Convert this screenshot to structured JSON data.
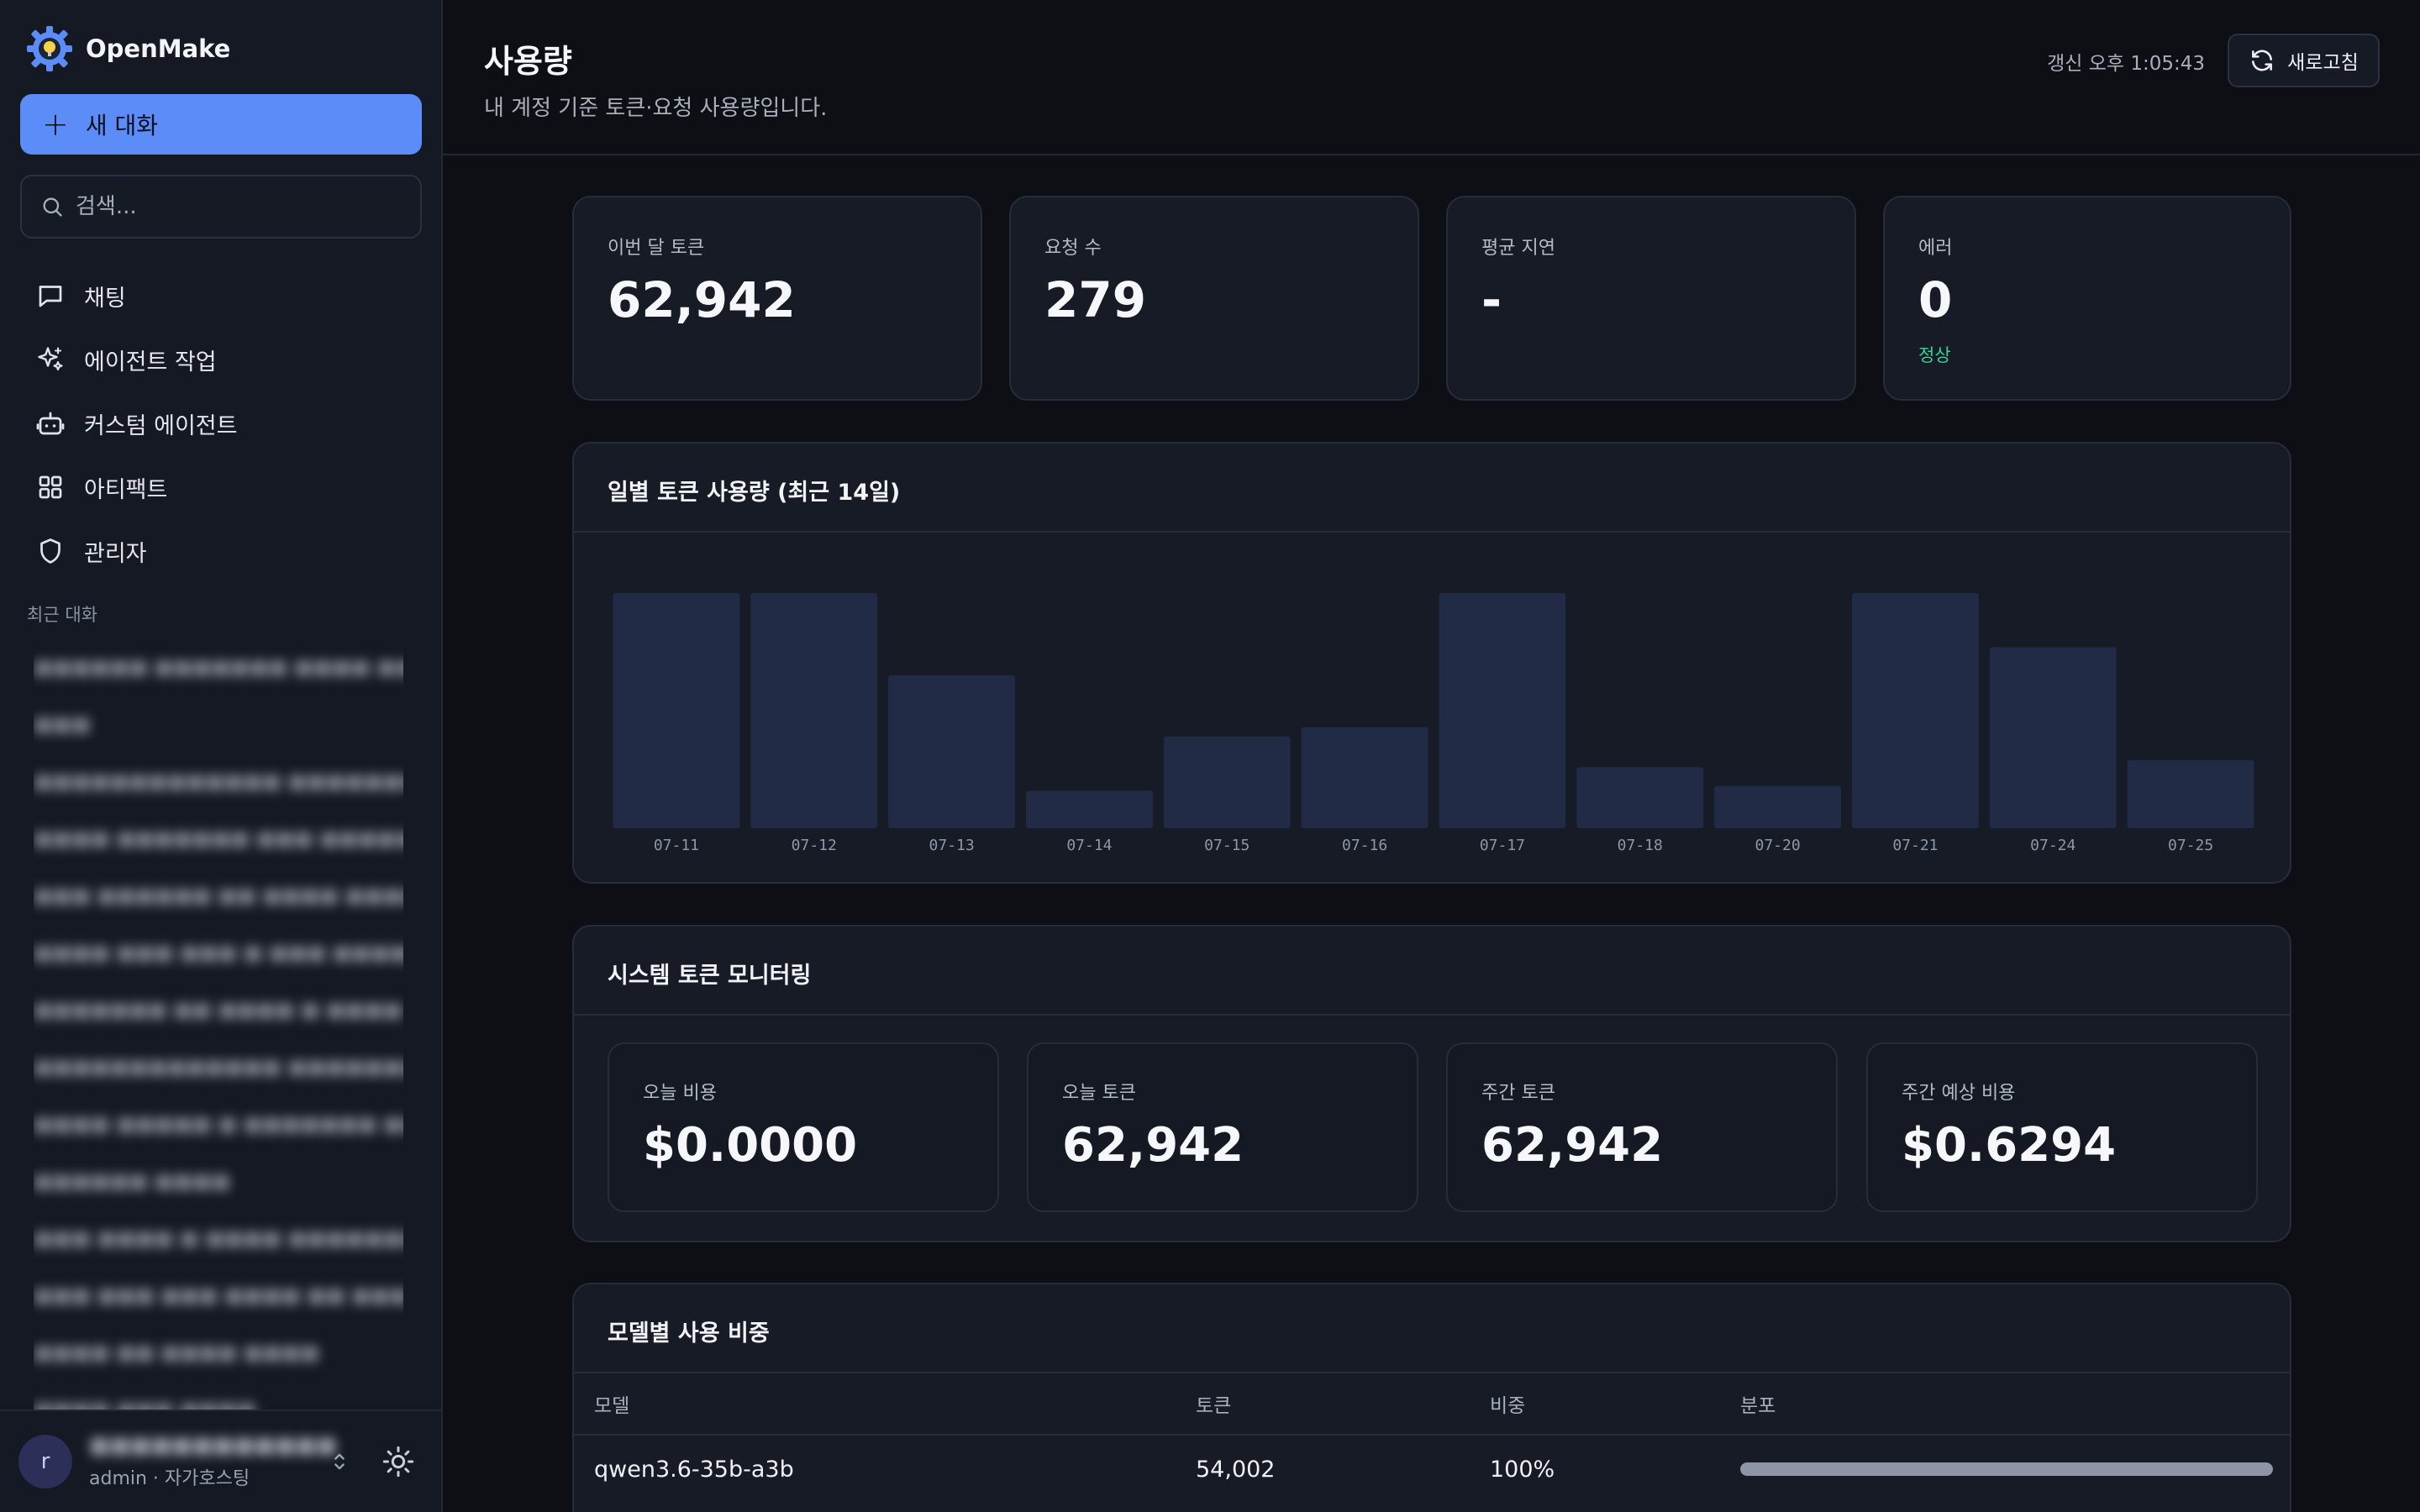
{
  "app": {
    "name": "OpenMake"
  },
  "sidebar": {
    "new_chat_label": "새 대화",
    "search_placeholder": "검색...",
    "nav": [
      {
        "label": "채팅",
        "icon": "chat-bubble-icon"
      },
      {
        "label": "에이전트 작업",
        "icon": "sparkles-icon"
      },
      {
        "label": "커스텀 에이전트",
        "icon": "robot-icon"
      },
      {
        "label": "아티팩트",
        "icon": "grid-icon"
      },
      {
        "label": "관리자",
        "icon": "shield-icon"
      }
    ],
    "recent_label": "최근 대화",
    "user": {
      "avatar_letter": "r",
      "role": "admin · 자가호스팅"
    }
  },
  "header": {
    "title": "사용량",
    "subtitle": "내 계정 기준 토큰·요청 사용량입니다.",
    "updated": "갱신 오후 1:05:43",
    "refresh_label": "새로고침"
  },
  "stats": [
    {
      "label": "이번 달 토큰",
      "value": "62,942"
    },
    {
      "label": "요청 수",
      "value": "279"
    },
    {
      "label": "평균 지연",
      "value": "-"
    },
    {
      "label": "에러",
      "value": "0",
      "note": "정상",
      "note_color": "#34d399"
    }
  ],
  "daily_panel": {
    "title": "일별 토큰 사용량 (최근 14일)"
  },
  "chart_data": {
    "type": "bar",
    "title": "일별 토큰 사용량 (최근 14일)",
    "categories": [
      "07-11",
      "07-12",
      "07-13",
      "07-14",
      "07-15",
      "07-16",
      "07-17",
      "07-18",
      "07-20",
      "07-21",
      "07-24",
      "07-25"
    ],
    "values": [
      100,
      100,
      65,
      16,
      39,
      43,
      100,
      26,
      18,
      100,
      77,
      29
    ],
    "ylim": [
      0,
      100
    ],
    "grid": false,
    "bar_color": "#212b45"
  },
  "system_panel": {
    "title": "시스템 토큰 모니터링",
    "cards": [
      {
        "label": "오늘 비용",
        "value": "$0.0000"
      },
      {
        "label": "오늘 토큰",
        "value": "62,942"
      },
      {
        "label": "주간 토큰",
        "value": "62,942"
      },
      {
        "label": "주간 예상 비용",
        "value": "$0.6294"
      }
    ]
  },
  "model_panel": {
    "title": "모델별 사용 비중",
    "columns": [
      "모델",
      "토큰",
      "비중",
      "분포"
    ],
    "rows": [
      {
        "model": "qwen3.6-35b-a3b",
        "tokens": "54,002",
        "share": "100%",
        "share_fraction": 1.0
      }
    ]
  },
  "colors": {
    "accent": "#5b8cf7",
    "success": "#34d399",
    "background": "#0d0f14",
    "panel": "#161b25"
  }
}
